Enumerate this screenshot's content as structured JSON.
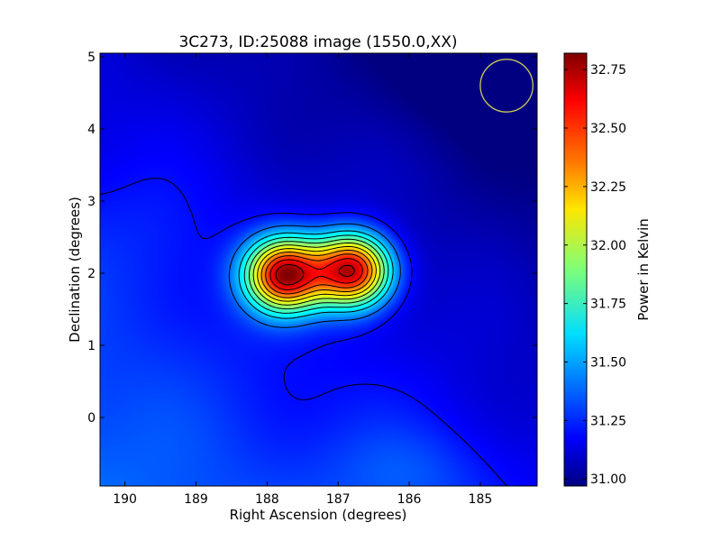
{
  "chart_data": {
    "type": "heatmap",
    "title": "3C273, ID:25088 image (1550.0,XX)",
    "xlabel": "Right Ascension (degrees)",
    "ylabel": "Declination (degrees)",
    "colorbar_label": "Power in Kelvin",
    "colormap": "jet",
    "xlim": [
      190.35,
      184.2
    ],
    "ylim": [
      -0.95,
      5.05
    ],
    "color_range": [
      30.97,
      32.82
    ],
    "x_ticks": [
      {
        "value": 190,
        "label": "190"
      },
      {
        "value": 189,
        "label": "189"
      },
      {
        "value": 188,
        "label": "188"
      },
      {
        "value": 187,
        "label": "187"
      },
      {
        "value": 186,
        "label": "186"
      },
      {
        "value": 185,
        "label": "185"
      }
    ],
    "y_ticks": [
      {
        "value": 0,
        "label": "0"
      },
      {
        "value": 1,
        "label": "1"
      },
      {
        "value": 2,
        "label": "2"
      },
      {
        "value": 3,
        "label": "3"
      },
      {
        "value": 4,
        "label": "4"
      },
      {
        "value": 5,
        "label": "5"
      }
    ],
    "colorbar_ticks": [
      {
        "value": 31.0,
        "label": "31.00"
      },
      {
        "value": 31.25,
        "label": "31.25"
      },
      {
        "value": 31.5,
        "label": "31.50"
      },
      {
        "value": 31.75,
        "label": "31.75"
      },
      {
        "value": 32.0,
        "label": "32.00"
      },
      {
        "value": 32.25,
        "label": "32.25"
      },
      {
        "value": 32.5,
        "label": "32.50"
      },
      {
        "value": 32.75,
        "label": "32.75"
      }
    ],
    "sources": [
      {
        "ra": 187.75,
        "dec": 1.98,
        "peak": 32.8
      },
      {
        "ra": 186.8,
        "dec": 2.04,
        "peak": 32.78
      }
    ],
    "beam_circle": {
      "ra": 184.63,
      "dec": 4.6,
      "radius_deg": 0.37,
      "color": "#cccc55"
    },
    "contour_color": "#000000"
  }
}
